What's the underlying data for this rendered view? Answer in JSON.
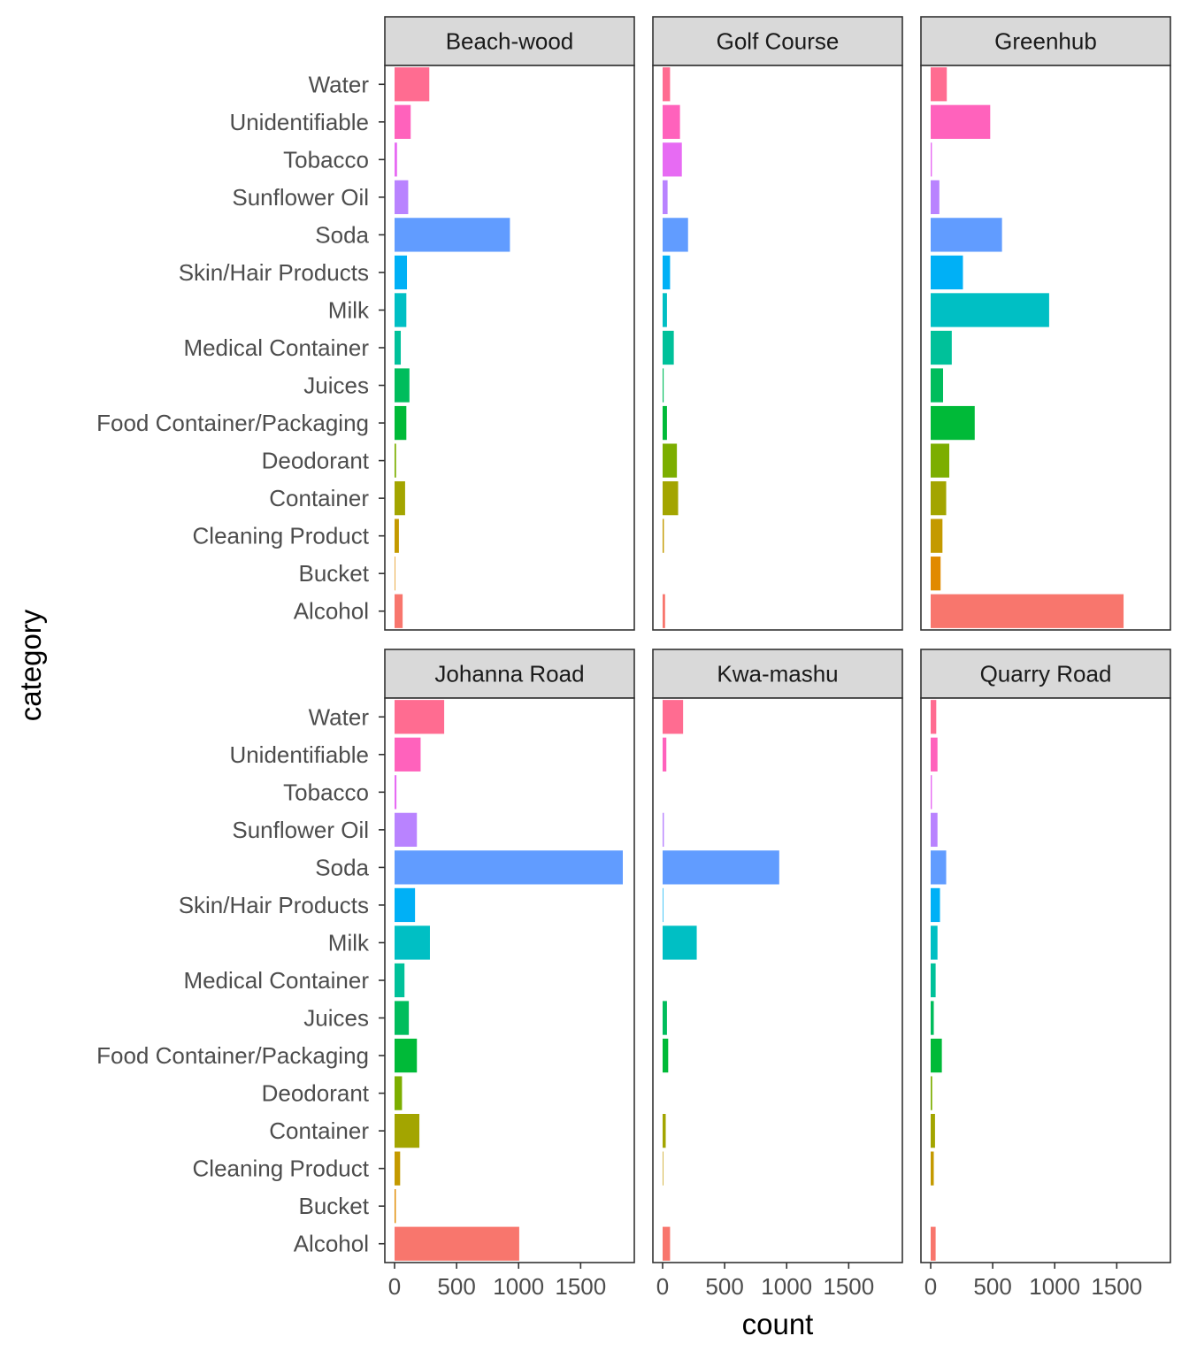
{
  "chart_data": {
    "type": "bar",
    "orientation": "horizontal",
    "faceted": true,
    "xlabel": "count",
    "ylabel": "category",
    "xlim": [
      0,
      1900
    ],
    "x_ticks": [
      0,
      500,
      1000,
      1500
    ],
    "x_tick_labels": [
      "0",
      "500",
      "1000",
      "1500"
    ],
    "grid": false,
    "legend": "none",
    "categories": [
      "Water",
      "Unidentifiable",
      "Tobacco",
      "Sunflower Oil",
      "Soda",
      "Skin/Hair Products",
      "Milk",
      "Medical Container",
      "Juices",
      "Food Container/Packaging",
      "Deodorant",
      "Container",
      "Cleaning Product",
      "Bucket",
      "Alcohol"
    ],
    "category_colors": [
      "#FF6C91",
      "#FF62BC",
      "#E76BF3",
      "#B983FF",
      "#619CFF",
      "#00B0F6",
      "#00BFC4",
      "#00C19A",
      "#00BD5C",
      "#00BA38",
      "#7CAE00",
      "#A3A500",
      "#C49A00",
      "#E18A00",
      "#F8766D"
    ],
    "panels": [
      {
        "name": "Beach-wood",
        "values": [
          280,
          130,
          20,
          110,
          930,
          100,
          95,
          50,
          120,
          95,
          12,
          85,
          35,
          5,
          65
        ]
      },
      {
        "name": "Golf Course",
        "values": [
          60,
          140,
          155,
          40,
          205,
          60,
          35,
          90,
          8,
          35,
          115,
          125,
          10,
          0,
          20
        ]
      },
      {
        "name": "Greenhub",
        "values": [
          130,
          480,
          10,
          70,
          575,
          260,
          955,
          170,
          100,
          355,
          150,
          125,
          95,
          80,
          1555
        ]
      },
      {
        "name": "Johanna Road",
        "values": [
          400,
          210,
          15,
          180,
          1840,
          165,
          285,
          80,
          115,
          180,
          60,
          200,
          45,
          10,
          1005
        ]
      },
      {
        "name": "Kwa-mashu",
        "values": [
          165,
          30,
          0,
          10,
          940,
          5,
          275,
          0,
          35,
          45,
          0,
          25,
          5,
          0,
          60
        ]
      },
      {
        "name": "Quarry Road",
        "values": [
          45,
          55,
          10,
          55,
          125,
          75,
          55,
          40,
          25,
          90,
          12,
          35,
          25,
          0,
          40
        ]
      }
    ]
  }
}
